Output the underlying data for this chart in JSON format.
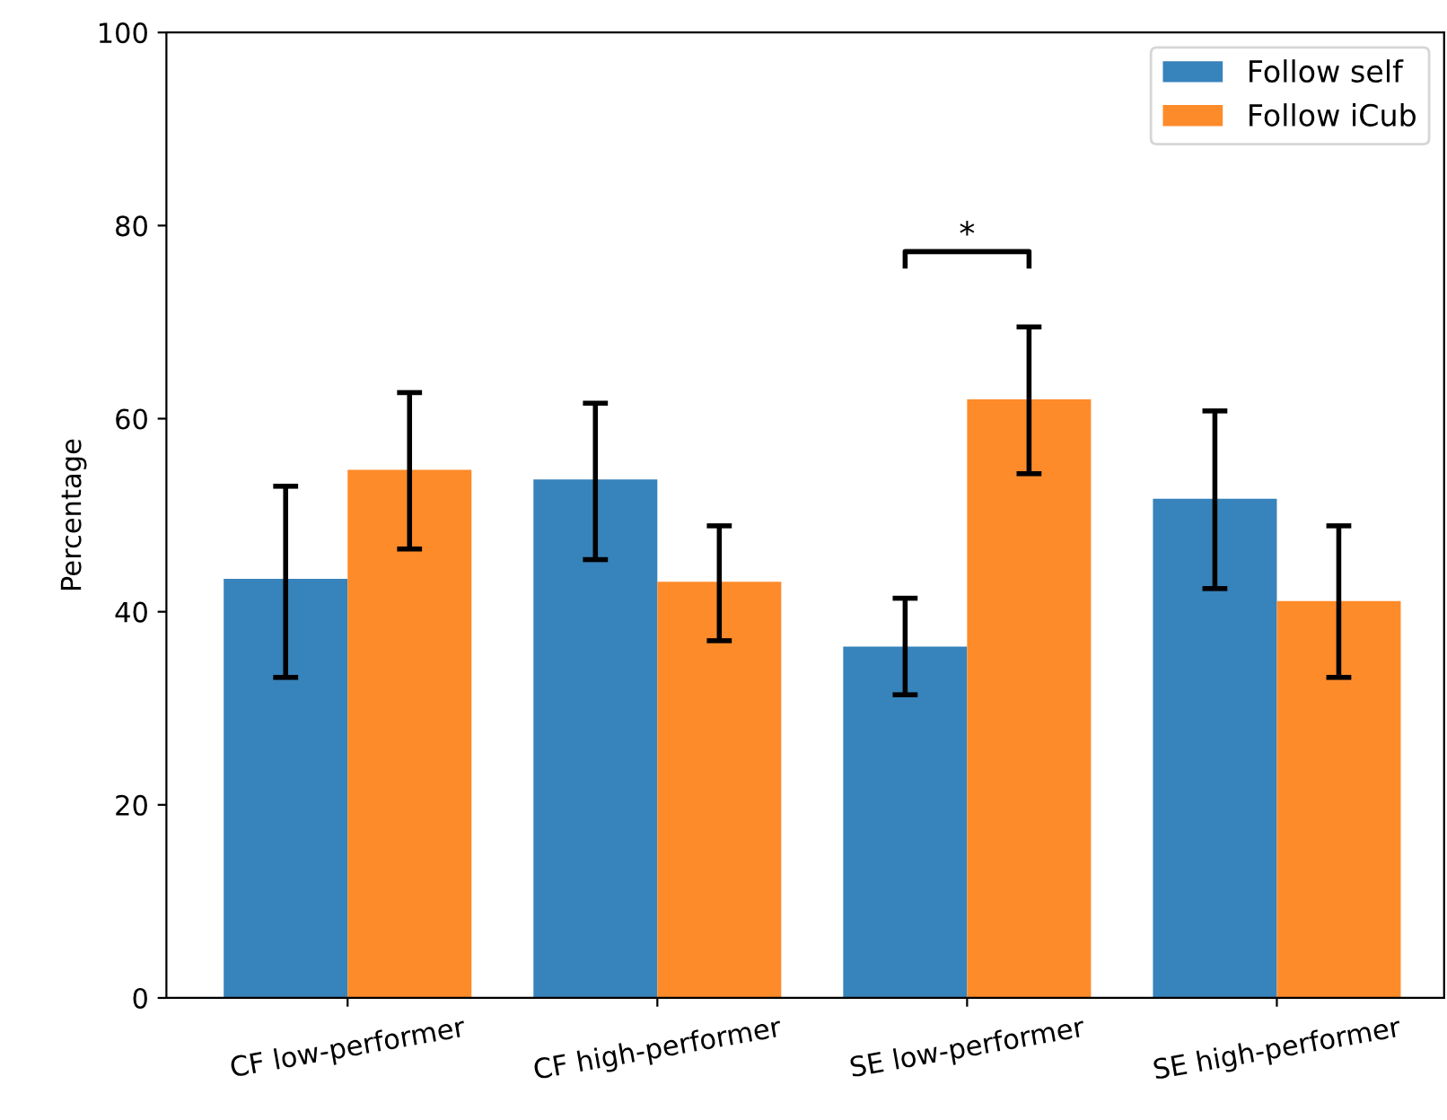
{
  "chart_data": {
    "type": "bar",
    "ylabel": "Percentage",
    "categories": [
      "CF low-performer",
      "CF high-performer",
      "SE low-performer",
      "SE high-performer"
    ],
    "series": [
      {
        "name": "Follow self",
        "color": "#3783bb",
        "values": [
          43.4,
          53.7,
          36.4,
          51.7
        ],
        "errors": [
          [
            33.2,
            53.0
          ],
          [
            45.4,
            61.6
          ],
          [
            31.4,
            41.4
          ],
          [
            42.4,
            60.8
          ]
        ]
      },
      {
        "name": "Follow iCub",
        "color": "#fe8b2a",
        "values": [
          54.7,
          43.1,
          62.0,
          41.1
        ],
        "errors": [
          [
            46.5,
            62.7
          ],
          [
            37.0,
            48.9
          ],
          [
            54.3,
            69.5
          ],
          [
            33.2,
            48.9
          ]
        ]
      }
    ],
    "ylim": [
      0,
      100
    ],
    "yticks": [
      0,
      20,
      40,
      60,
      80,
      100
    ],
    "grid": false,
    "legend": "top right",
    "annotations": [
      "*"
    ]
  }
}
